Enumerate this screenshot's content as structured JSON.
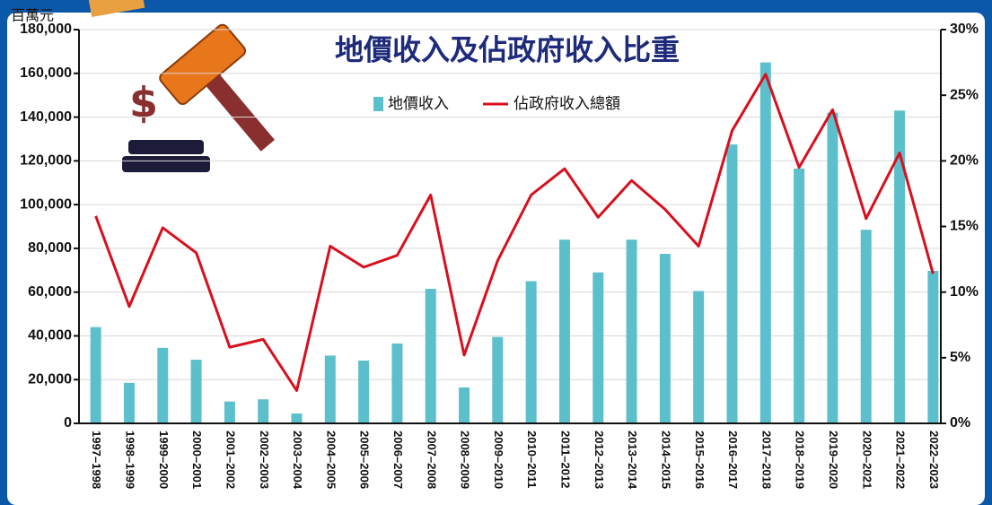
{
  "chart_data": {
    "type": "bar_line",
    "title": "地價收入及佔政府收入比重",
    "y_unit": "百萬元",
    "categories": [
      "1997–1998",
      "1998–1999",
      "1999–2000",
      "2000–2001",
      "2001–2002",
      "2002–2003",
      "2003–2004",
      "2004–2005",
      "2005–2006",
      "2006–2007",
      "2007–2008",
      "2008–2009",
      "2009–2010",
      "2010–2011",
      "2011–2012",
      "2012–2013",
      "2013–2014",
      "2014–2015",
      "2015–2016",
      "2016–2017",
      "2017–2018",
      "2018–2019",
      "2019–2020",
      "2020–2021",
      "2021–2022",
      "2022–2023"
    ],
    "series": [
      {
        "name": "地價收入",
        "type": "bar",
        "color": "#5bc0cc",
        "axis": "y",
        "values": [
          44000,
          18500,
          34500,
          29100,
          10000,
          11000,
          4500,
          31000,
          28700,
          36500,
          61500,
          16400,
          39500,
          65000,
          84000,
          69000,
          84000,
          77500,
          60500,
          127500,
          165000,
          116500,
          142000,
          88500,
          143000,
          69700
        ]
      },
      {
        "name": "佔政府收入總額",
        "type": "line",
        "color": "#d7101e",
        "axis": "y2",
        "values": [
          15.8,
          8.9,
          14.9,
          13.0,
          5.8,
          6.4,
          2.5,
          13.5,
          11.9,
          12.8,
          17.4,
          5.2,
          12.4,
          17.4,
          19.4,
          15.7,
          18.5,
          16.3,
          13.5,
          22.3,
          26.6,
          19.5,
          23.9,
          15.6,
          20.6,
          11.4
        ]
      }
    ],
    "ylim": [
      0,
      180000
    ],
    "yticks": [
      0,
      {
        "value": 20000,
        "label": "20,000"
      },
      {
        "value": 40000,
        "label": "40,000"
      },
      {
        "value": 60000,
        "label": "60,000"
      },
      {
        "value": 80000,
        "label": "80,000"
      },
      {
        "value": 100000,
        "label": "100,000"
      },
      {
        "value": 120000,
        "label": "120,000"
      },
      {
        "value": 140000,
        "label": "140,000"
      },
      {
        "value": 160000,
        "label": "160,000"
      },
      {
        "value": 180000,
        "label": "180,000"
      }
    ],
    "y2lim": [
      0,
      30
    ],
    "y2ticks": [
      {
        "value": 0,
        "label": "0%"
      },
      {
        "value": 5,
        "label": "5%"
      },
      {
        "value": 10,
        "label": "10%"
      },
      {
        "value": 15,
        "label": "15%"
      },
      {
        "value": 20,
        "label": "20%"
      },
      {
        "value": 25,
        "label": "25%"
      },
      {
        "value": 30,
        "label": "30%"
      }
    ],
    "grid": true
  }
}
